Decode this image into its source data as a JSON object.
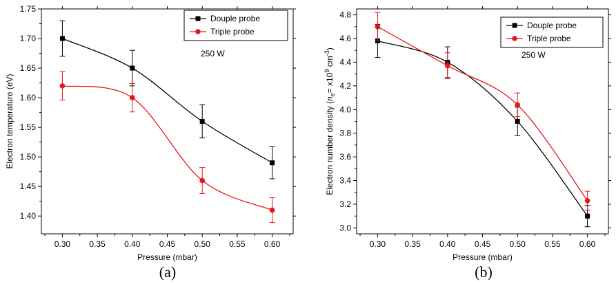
{
  "chart_data": [
    {
      "type": "line",
      "panel_label": "(a)",
      "xlabel": "Pressure (mbar)",
      "ylabel": "Electron temperature  (eV)",
      "xlim": [
        0.27,
        0.63
      ],
      "ylim": [
        1.37,
        1.75
      ],
      "xticks": [
        "0.30",
        "0.35",
        "0.40",
        "0.45",
        "0.50",
        "0.55",
        "0.60"
      ],
      "yticks": [
        "1.40",
        "1.45",
        "1.50",
        "1.55",
        "1.60",
        "1.65",
        "1.70",
        "1.75"
      ],
      "annotation": "250 W",
      "legend_position": "top-right",
      "grid": false,
      "series": [
        {
          "name": "Douple probe",
          "color": "#000000",
          "marker": "square",
          "x": [
            0.3,
            0.4,
            0.5,
            0.6
          ],
          "y": [
            1.7,
            1.65,
            1.56,
            1.49
          ],
          "error": [
            0.03,
            0.03,
            0.028,
            0.027
          ]
        },
        {
          "name": "Triple probe",
          "color": "#e8141b",
          "marker": "circle",
          "x": [
            0.3,
            0.4,
            0.5,
            0.6
          ],
          "y": [
            1.62,
            1.6,
            1.46,
            1.41
          ],
          "error": [
            0.024,
            0.024,
            0.022,
            0.021
          ]
        }
      ]
    },
    {
      "type": "line",
      "panel_label": "(b)",
      "xlabel": "Pressure (mbar)",
      "ylabel": "Electron number density (ne = x10^9 cm^-3)",
      "ylabel_parts": {
        "prefix": "Electron number density (",
        "n": "n",
        "e": "e",
        "eq": "= x10",
        "exp9": "9",
        "cm": " cm",
        "exp_neg3": "-3",
        "suffix": ")"
      },
      "xlim": [
        0.27,
        0.63
      ],
      "ylim": [
        2.95,
        4.85
      ],
      "xticks": [
        "0.30",
        "0.35",
        "0.40",
        "0.45",
        "0.50",
        "0.55",
        "0.60"
      ],
      "yticks": [
        "3.0",
        "3.2",
        "3.4",
        "3.6",
        "3.8",
        "4.0",
        "4.2",
        "4.4",
        "4.6",
        "4.8"
      ],
      "annotation": "250 W",
      "legend_position": "top-right",
      "grid": false,
      "series": [
        {
          "name": "Douple probe",
          "color": "#000000",
          "marker": "square",
          "x": [
            0.3,
            0.4,
            0.5,
            0.6
          ],
          "y": [
            4.58,
            4.4,
            3.9,
            3.1
          ],
          "error": [
            0.14,
            0.13,
            0.12,
            0.09
          ]
        },
        {
          "name": "Triple probe",
          "color": "#e8141b",
          "marker": "circle",
          "x": [
            0.3,
            0.4,
            0.5,
            0.6
          ],
          "y": [
            4.7,
            4.37,
            4.04,
            3.23
          ],
          "error": [
            0.12,
            0.11,
            0.1,
            0.08
          ]
        }
      ]
    }
  ]
}
